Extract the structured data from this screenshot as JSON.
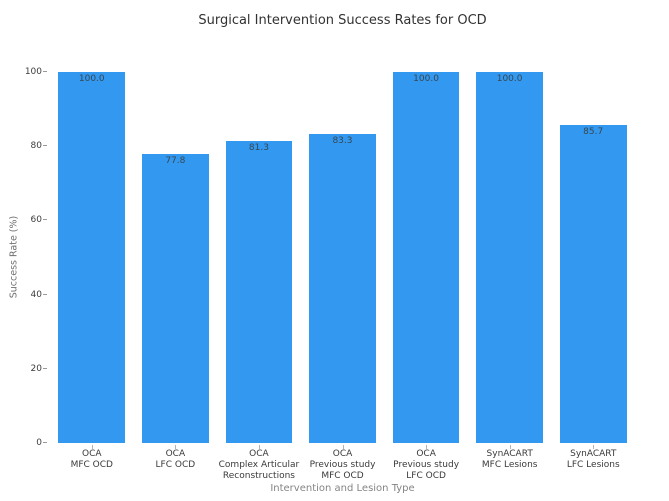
{
  "chart_data": {
    "type": "bar",
    "title": "Surgical Intervention Success Rates for OCD",
    "xlabel": "Intervention and Lesion Type",
    "ylabel": "Success Rate (%)",
    "ylim": [
      0,
      100
    ],
    "yticks": [
      0,
      20,
      40,
      60,
      80,
      100
    ],
    "grid": false,
    "legend": false,
    "bar_color": "#3398f0",
    "value_label_color": "#37474f",
    "categories": [
      "OCA\nMFC OCD",
      "OCA\nLFC OCD",
      "OCA\nComplex Articular\nReconstructions",
      "OCA\nPrevious study\nMFC OCD",
      "OCA\nPrevious study\nLFC OCD",
      "SynACART\nMFC Lesions",
      "SynACART\nLFC Lesions"
    ],
    "values": [
      100.0,
      77.8,
      81.3,
      83.3,
      100.0,
      100.0,
      85.7
    ],
    "value_labels": [
      "100.0",
      "77.8",
      "81.3",
      "83.3",
      "100.0",
      "100.0",
      "85.7"
    ]
  }
}
